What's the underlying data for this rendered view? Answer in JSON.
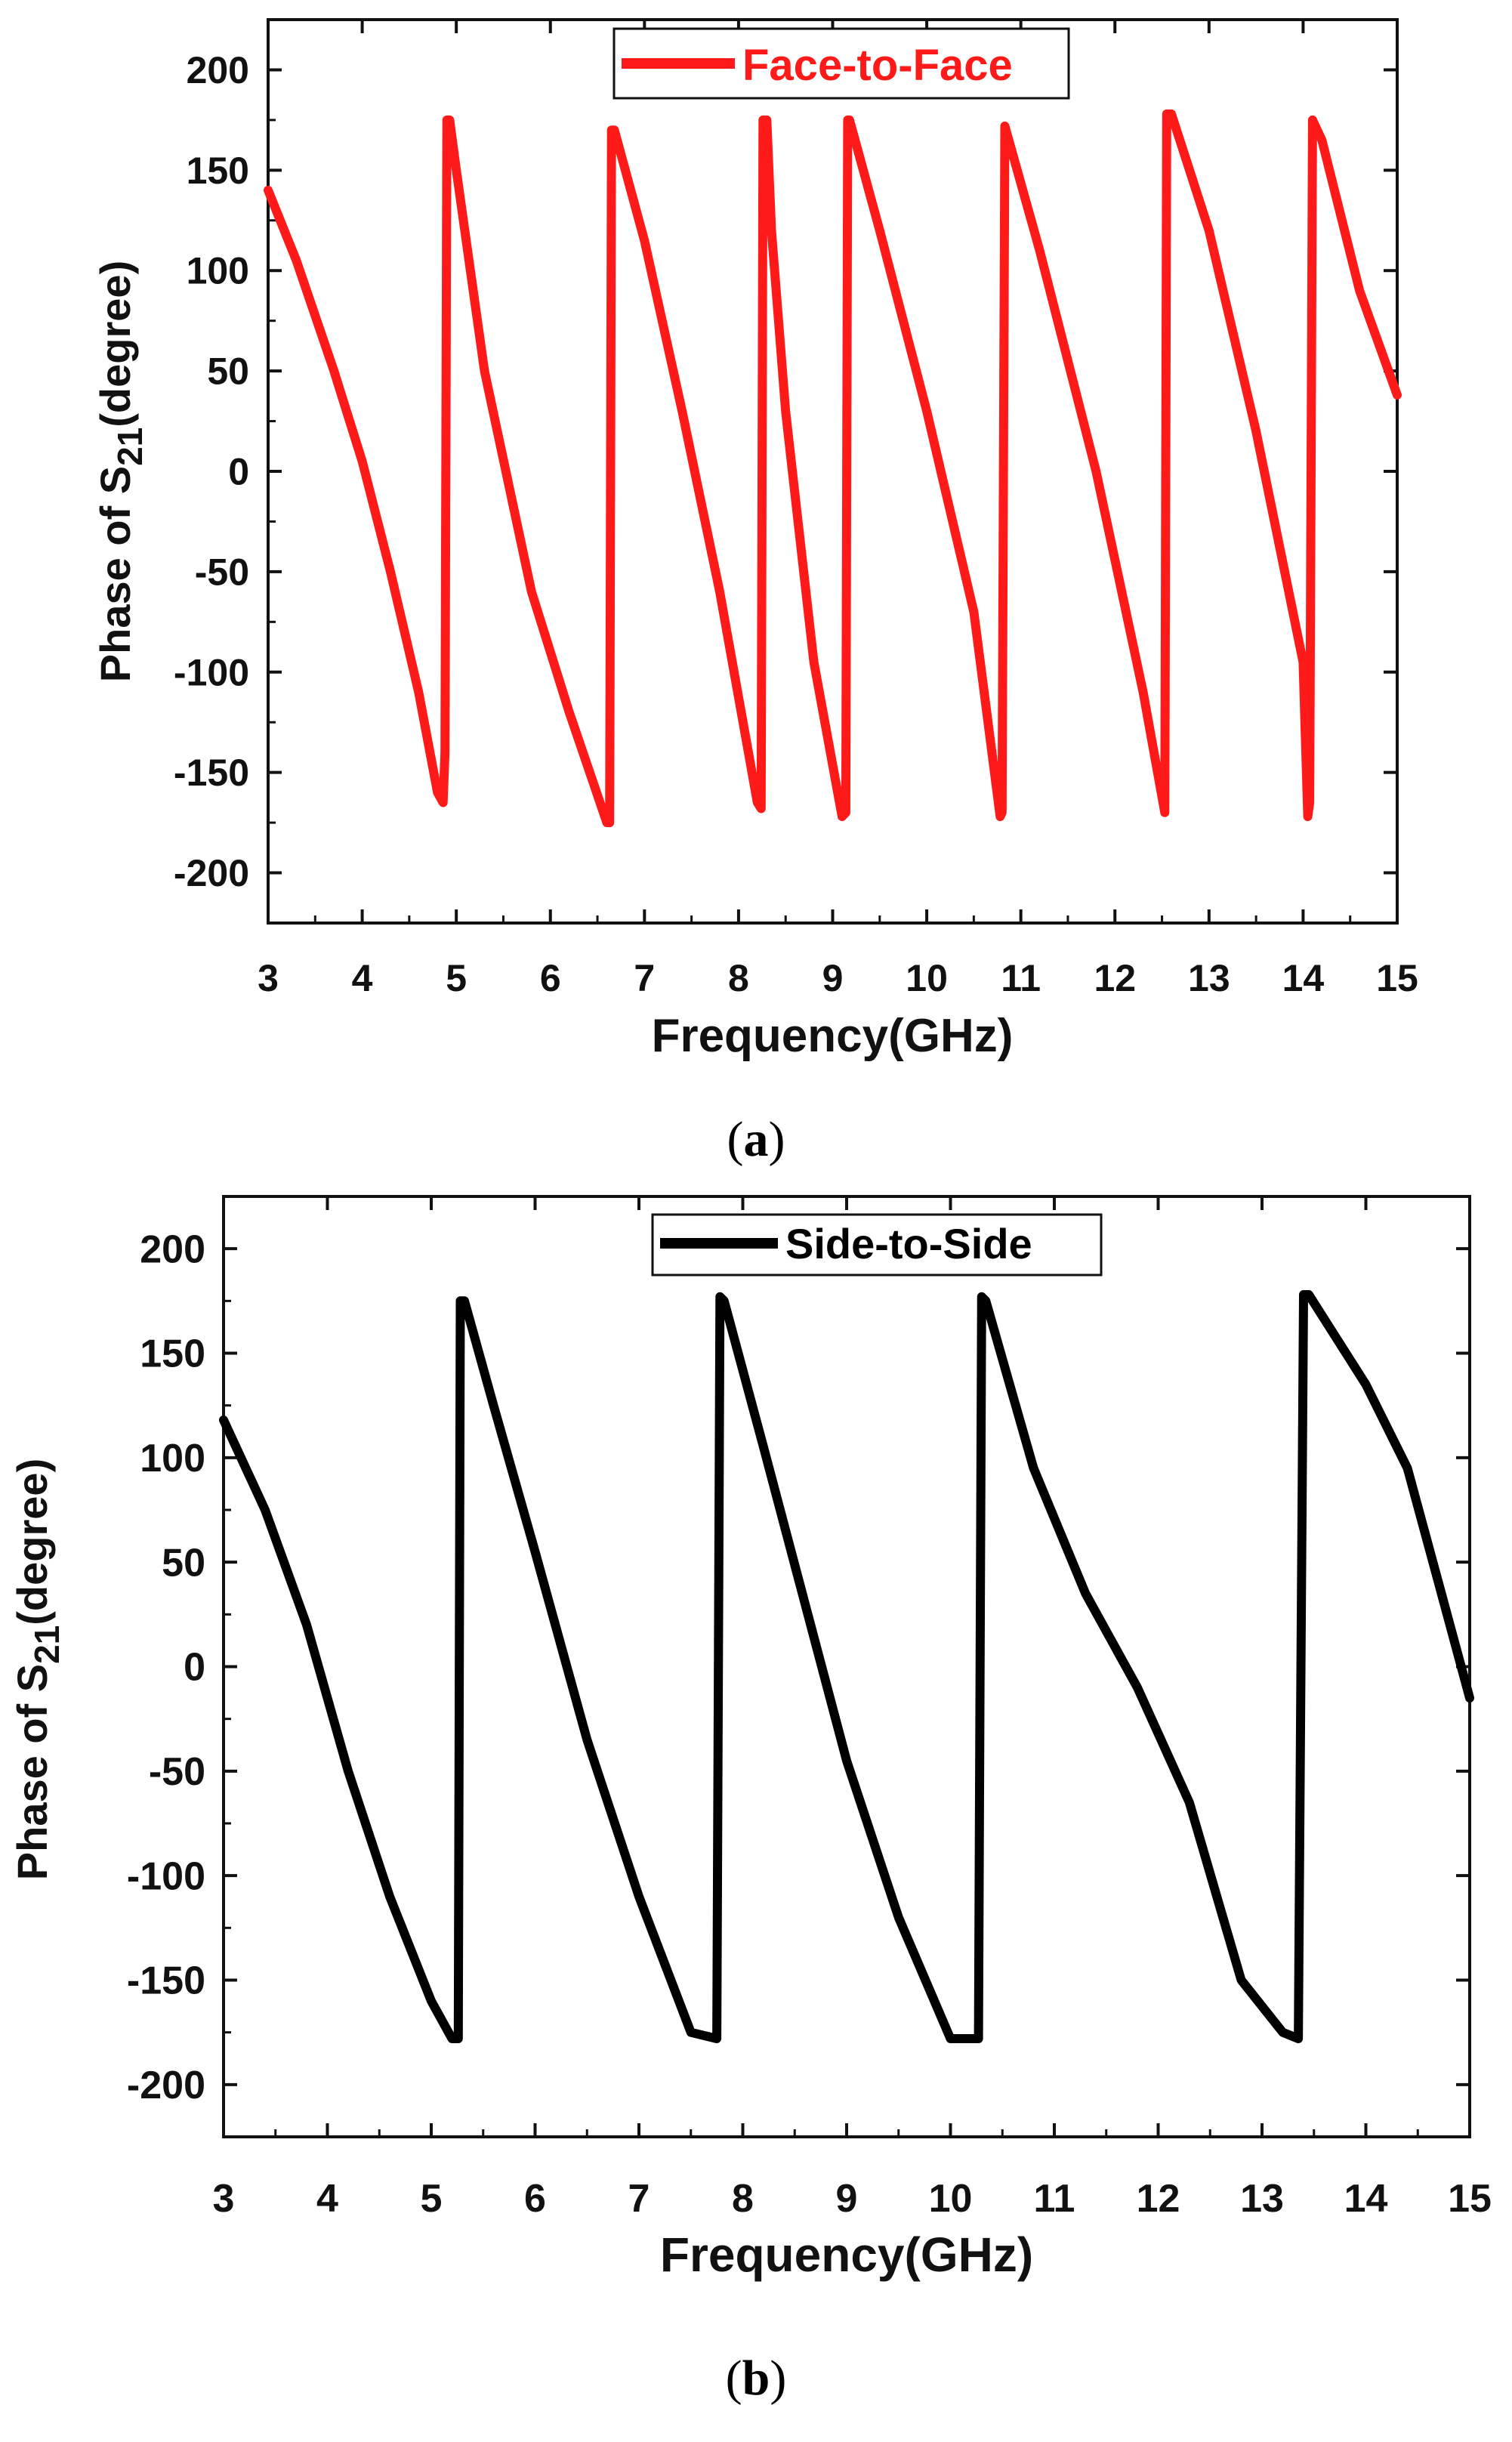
{
  "chart_data": [
    {
      "id": "a",
      "type": "line",
      "caption_letter": "a",
      "xlabel": "Frequency(GHz)",
      "ylabel": "Phase of S",
      "ylabel_sub": "21",
      "ylabel_rest": "(degree)",
      "xlim": [
        3,
        15
      ],
      "ylim": [
        -225,
        225
      ],
      "xticks": [
        3,
        4,
        5,
        6,
        7,
        8,
        9,
        10,
        11,
        12,
        13,
        14,
        15
      ],
      "yticks": [
        -200,
        -150,
        -100,
        -50,
        0,
        50,
        100,
        150,
        200
      ],
      "legend": "Face-to-Face",
      "legend_position": "top-center",
      "color": "#ff1a1a",
      "series": [
        {
          "name": "Face-to-Face",
          "x": [
            3.0,
            3.3,
            3.7,
            4.0,
            4.3,
            4.6,
            4.8,
            4.86,
            4.88,
            4.9,
            4.93,
            5.0,
            5.3,
            5.8,
            6.2,
            6.6,
            6.63,
            6.65,
            6.68,
            7.0,
            7.4,
            7.8,
            8.2,
            8.24,
            8.26,
            8.3,
            8.35,
            8.5,
            8.8,
            9.1,
            9.14,
            9.16,
            9.18,
            9.5,
            10.0,
            10.5,
            10.78,
            10.8,
            10.83,
            11.2,
            11.8,
            12.3,
            12.53,
            12.55,
            12.6,
            13.0,
            13.5,
            14.0,
            14.05,
            14.07,
            14.1,
            14.2,
            14.6,
            15.0
          ],
          "y": [
            140,
            105,
            50,
            5,
            -50,
            -110,
            -160,
            -165,
            -140,
            175,
            175,
            150,
            50,
            -60,
            -120,
            -175,
            -175,
            170,
            170,
            115,
            30,
            -60,
            -165,
            -168,
            175,
            175,
            120,
            30,
            -95,
            -172,
            -170,
            175,
            175,
            120,
            30,
            -70,
            -172,
            -170,
            172,
            110,
            0,
            -110,
            -170,
            178,
            178,
            120,
            20,
            -95,
            -172,
            -165,
            175,
            165,
            90,
            38
          ]
        }
      ]
    },
    {
      "id": "b",
      "type": "line",
      "caption_letter": "b",
      "xlabel": "Frequency(GHz)",
      "ylabel": "Phase of S",
      "ylabel_sub": "21",
      "ylabel_rest": "(degree)",
      "xlim": [
        3,
        15
      ],
      "ylim": [
        -225,
        225
      ],
      "xticks": [
        3,
        4,
        5,
        6,
        7,
        8,
        9,
        10,
        11,
        12,
        13,
        14,
        15
      ],
      "yticks": [
        -200,
        -150,
        -100,
        -50,
        0,
        50,
        100,
        150,
        200
      ],
      "legend": "Side-to-Side",
      "legend_position": "top-center",
      "color": "#000000",
      "series": [
        {
          "name": "Side-to-Side",
          "x": [
            3.0,
            3.4,
            3.8,
            4.2,
            4.6,
            5.0,
            5.2,
            5.26,
            5.28,
            5.32,
            5.6,
            6.0,
            6.5,
            7.0,
            7.5,
            7.75,
            7.78,
            7.82,
            8.2,
            8.6,
            9.0,
            9.5,
            10.0,
            10.27,
            10.3,
            10.34,
            10.8,
            11.3,
            11.8,
            12.3,
            12.8,
            13.2,
            13.35,
            13.4,
            13.45,
            14.0,
            14.4,
            14.7,
            15.0
          ],
          "y": [
            118,
            75,
            20,
            -50,
            -110,
            -160,
            -178,
            -178,
            175,
            175,
            125,
            55,
            -35,
            -110,
            -175,
            -178,
            177,
            175,
            105,
            30,
            -45,
            -120,
            -178,
            -178,
            177,
            175,
            95,
            35,
            -10,
            -65,
            -150,
            -175,
            -178,
            178,
            178,
            135,
            95,
            40,
            -15
          ]
        }
      ]
    }
  ]
}
